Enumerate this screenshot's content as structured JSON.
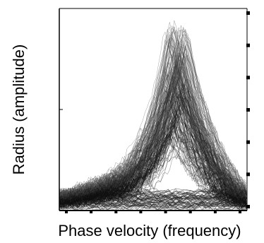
{
  "chart_data": {
    "type": "line",
    "xlabel": "Phase velocity (frequency)",
    "ylabel": "Radius (amplitude)",
    "xlim": [
      0,
      1
    ],
    "ylim": [
      0,
      1
    ],
    "grid": false,
    "legend": "none",
    "description_of_series": "dense overlapping trajectories forming a resonance-like peak",
    "peak_x": 0.62,
    "peak_y": 0.93,
    "envelope": {
      "x": [
        0.0,
        0.05,
        0.1,
        0.15,
        0.2,
        0.25,
        0.3,
        0.35,
        0.4,
        0.45,
        0.5,
        0.55,
        0.58,
        0.6,
        0.62,
        0.64,
        0.66,
        0.7,
        0.75,
        0.8,
        0.85,
        0.9,
        0.95,
        1.0
      ],
      "upper": [
        0.08,
        0.09,
        0.1,
        0.12,
        0.14,
        0.16,
        0.18,
        0.21,
        0.26,
        0.35,
        0.44,
        0.6,
        0.72,
        0.82,
        0.93,
        0.88,
        0.78,
        0.62,
        0.48,
        0.36,
        0.26,
        0.18,
        0.12,
        0.08
      ],
      "core": [
        0.05,
        0.06,
        0.07,
        0.08,
        0.09,
        0.1,
        0.11,
        0.13,
        0.16,
        0.22,
        0.32,
        0.45,
        0.55,
        0.62,
        0.68,
        0.64,
        0.56,
        0.44,
        0.32,
        0.22,
        0.15,
        0.1,
        0.07,
        0.05
      ]
    },
    "x_ticks_count": 8,
    "y_ticks_count": 7
  }
}
